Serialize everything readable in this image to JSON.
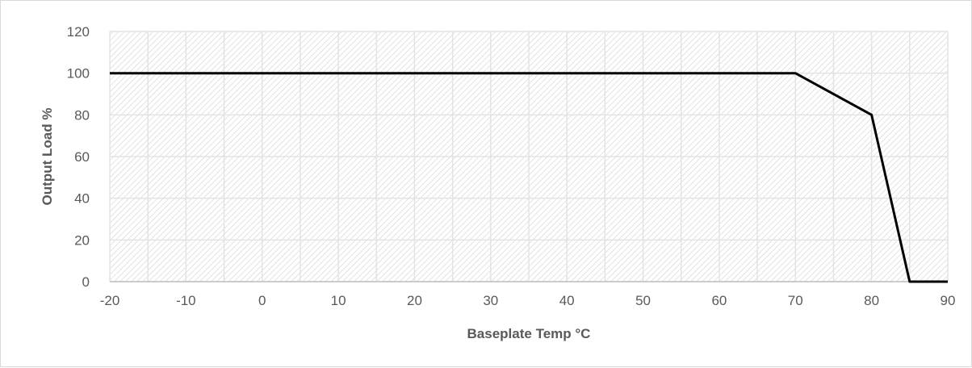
{
  "chart_data": {
    "type": "line",
    "title": "",
    "xlabel": "Baseplate Temp °C",
    "ylabel": "Output Load %",
    "xlim": [
      -20,
      90
    ],
    "ylim": [
      0,
      120
    ],
    "x_ticks": [
      -20,
      -10,
      0,
      10,
      20,
      30,
      40,
      50,
      60,
      70,
      80,
      90
    ],
    "y_ticks": [
      0,
      20,
      40,
      60,
      80,
      100,
      120
    ],
    "x_minor_step": 5,
    "grid": "on (major and minor vertical, major horizontal)",
    "plot_area_fill": "diagonal hatch",
    "legend": "none",
    "series": [
      {
        "x": [
          -20,
          70,
          80,
          85,
          90
        ],
        "y": [
          100,
          100,
          80,
          0,
          0
        ],
        "color": "#000000"
      }
    ]
  }
}
